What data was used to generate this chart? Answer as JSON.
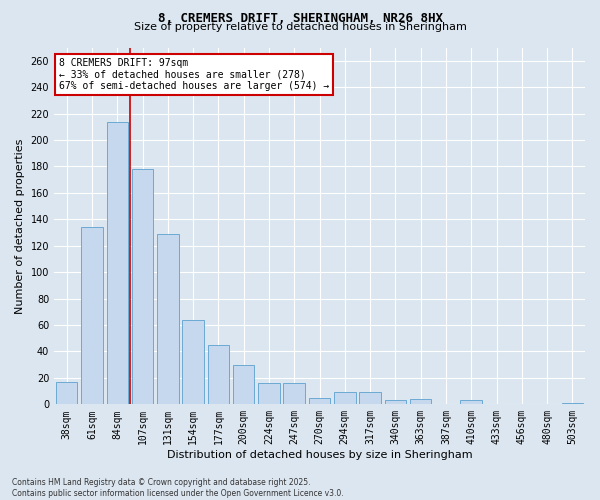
{
  "title": "8, CREMERS DRIFT, SHERINGHAM, NR26 8HX",
  "subtitle": "Size of property relative to detached houses in Sheringham",
  "xlabel": "Distribution of detached houses by size in Sheringham",
  "ylabel": "Number of detached properties",
  "categories": [
    "38sqm",
    "61sqm",
    "84sqm",
    "107sqm",
    "131sqm",
    "154sqm",
    "177sqm",
    "200sqm",
    "224sqm",
    "247sqm",
    "270sqm",
    "294sqm",
    "317sqm",
    "340sqm",
    "363sqm",
    "387sqm",
    "410sqm",
    "433sqm",
    "456sqm",
    "480sqm",
    "503sqm"
  ],
  "values": [
    17,
    134,
    214,
    178,
    129,
    64,
    45,
    30,
    16,
    16,
    5,
    9,
    9,
    3,
    4,
    0,
    3,
    0,
    0,
    0,
    1
  ],
  "bar_color": "#c5d8ed",
  "bar_edge_color": "#6aaad4",
  "background_color": "#dce6f0",
  "grid_color": "#ffffff",
  "annotation_text": "8 CREMERS DRIFT: 97sqm\n← 33% of detached houses are smaller (278)\n67% of semi-detached houses are larger (574) →",
  "annotation_box_color": "#ffffff",
  "annotation_box_edge_color": "#cc0000",
  "vline_color": "#cc0000",
  "vline_x": 2.5,
  "footer": "Contains HM Land Registry data © Crown copyright and database right 2025.\nContains public sector information licensed under the Open Government Licence v3.0.",
  "ylim": [
    0,
    270
  ],
  "yticks": [
    0,
    20,
    40,
    60,
    80,
    100,
    120,
    140,
    160,
    180,
    200,
    220,
    240,
    260
  ],
  "title_fontsize": 9,
  "subtitle_fontsize": 8,
  "ylabel_fontsize": 8,
  "xlabel_fontsize": 8,
  "tick_fontsize": 7,
  "ann_fontsize": 7
}
